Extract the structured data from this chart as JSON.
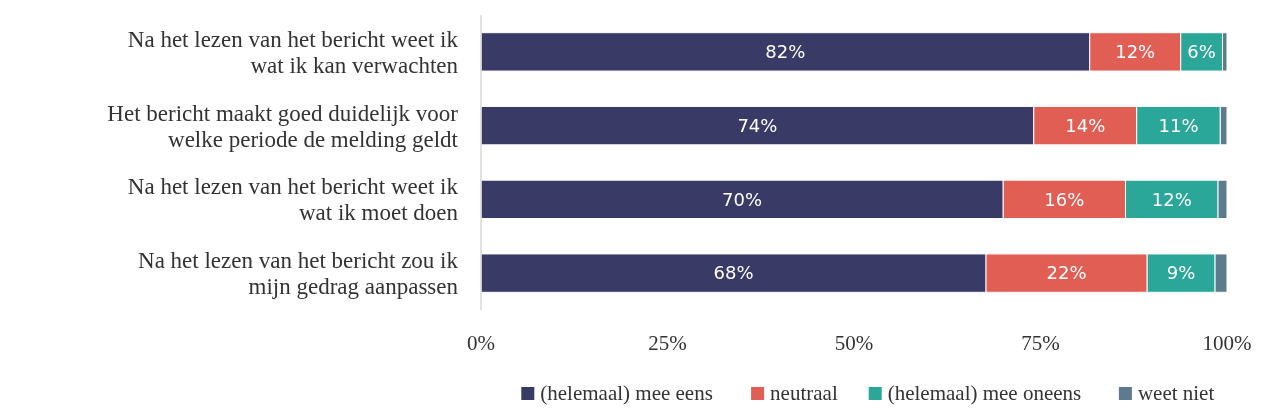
{
  "chart_data": {
    "type": "bar",
    "orientation": "horizontal",
    "stacked": true,
    "categories": [
      "Na het lezen van het bericht weet ik wat ik kan verwachten",
      "Het bericht maakt goed duidelijk voor welke periode de melding geldt",
      "Na het lezen van het bericht weet ik wat ik moet doen",
      "Na het lezen van het bericht zou ik mijn gedrag aanpassen"
    ],
    "series": [
      {
        "name": "(helemaal) mee eens",
        "color": "#393b66",
        "values": [
          81.6,
          74.1,
          70.0,
          67.7
        ],
        "value_labels": [
          "82%",
          "74%",
          "70%",
          "68%"
        ]
      },
      {
        "name": "neutraal",
        "color": "#e05e54",
        "values": [
          12.2,
          13.8,
          16.4,
          21.6
        ],
        "value_labels": [
          "12%",
          "14%",
          "16%",
          "22%"
        ]
      },
      {
        "name": "(helemaal) mee oneens",
        "color": "#2ba79a",
        "values": [
          5.6,
          11.2,
          12.4,
          9.1
        ],
        "value_labels": [
          "6%",
          "11%",
          "12%",
          "9%"
        ]
      },
      {
        "name": "weet niet",
        "color": "#5e7b8e",
        "values": [
          0.6,
          0.9,
          1.2,
          1.6
        ]
      }
    ],
    "xlim": [
      0,
      100
    ],
    "xticks": [
      {
        "value": 0,
        "label": "0%"
      },
      {
        "value": 25,
        "label": "25%"
      },
      {
        "value": 50,
        "label": "50%"
      },
      {
        "value": 75,
        "label": "75%"
      },
      {
        "value": 100,
        "label": "100%"
      }
    ],
    "legend": "bottom"
  }
}
